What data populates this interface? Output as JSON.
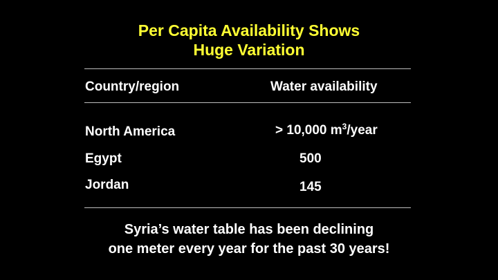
{
  "title": {
    "line1": "Per Capita Availability Shows",
    "line2": "Huge Variation"
  },
  "table": {
    "headers": [
      "Country/region",
      "Water availability"
    ],
    "rows": [
      {
        "country": "North America",
        "value_prefix": "> 10,000 m",
        "value_sup": "3",
        "value_suffix": "/year"
      },
      {
        "country": "Egypt",
        "value": "500"
      },
      {
        "country": "Jordan",
        "value": "145"
      }
    ]
  },
  "footer": {
    "line1": "Syria’s water table has been declining",
    "line2": "one meter every year for the past 30 years!"
  },
  "colors": {
    "background": "#000000",
    "title": "#ffff33",
    "text": "#ffffff",
    "rule": "#bfbfbf"
  }
}
